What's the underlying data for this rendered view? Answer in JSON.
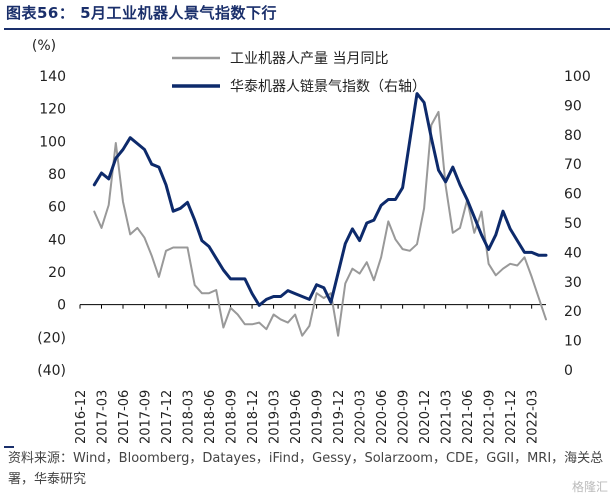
{
  "figure_title": "图表56： 5月工业机器人景气指数下行",
  "source_note": "资料来源：Wind，Bloomberg，Datayes，iFind，Gessy，Solarzoom，CDE，GGII，MRI，海关总署，华泰研究",
  "watermark": "格隆汇",
  "chart_data": {
    "type": "line",
    "left_unit": "(%)",
    "left_ylim": [
      -40,
      140
    ],
    "left_ticks": [
      "(40)",
      "(20)",
      "0",
      "20",
      "40",
      "60",
      "80",
      "100",
      "120",
      "140"
    ],
    "left_tick_values": [
      -40,
      -20,
      0,
      20,
      40,
      60,
      80,
      100,
      120,
      140
    ],
    "right_ylim": [
      0,
      100
    ],
    "right_ticks": [
      "0",
      "10",
      "20",
      "30",
      "40",
      "50",
      "60",
      "70",
      "80",
      "90",
      "100"
    ],
    "right_tick_values": [
      0,
      10,
      20,
      30,
      40,
      50,
      60,
      70,
      80,
      90,
      100
    ],
    "x_start": "2016-12",
    "x_count": 66,
    "x_tick_labels": [
      "2016-12",
      "2017-03",
      "2017-06",
      "2017-09",
      "2017-12",
      "2018-03",
      "2018-06",
      "2018-09",
      "2018-12",
      "2019-03",
      "2019-06",
      "2019-09",
      "2019-12",
      "2020-03",
      "2020-06",
      "2020-09",
      "2020-12",
      "2021-03",
      "2021-06",
      "2021-09",
      "2021-12",
      "2022-03"
    ],
    "legend_position": "top-center",
    "series": [
      {
        "name": "工业机器人产量 当月同比",
        "axis": "left",
        "color": "#999999",
        "values": [
          null,
          null,
          57,
          47,
          61,
          99,
          63,
          43,
          47,
          41,
          30,
          17,
          33,
          35,
          35,
          35,
          12,
          7,
          7,
          9,
          -14,
          -2,
          -6,
          -12,
          -12,
          -11,
          -15,
          -6,
          -9,
          -11,
          -6,
          -19,
          -13,
          7,
          4,
          7,
          -19,
          13,
          22,
          19,
          26,
          15,
          29,
          51,
          40,
          34,
          33,
          37,
          59,
          110,
          118,
          73,
          44,
          47,
          64,
          44,
          57,
          25,
          18,
          22,
          25,
          24,
          29,
          17,
          4,
          -9
        ]
      },
      {
        "name": "华泰机器人链景气指数（右轴）",
        "axis": "right",
        "color": "#0d2a6b",
        "values": [
          null,
          null,
          63,
          67,
          65,
          72,
          75,
          79,
          77,
          75,
          70,
          69,
          63,
          54,
          55,
          57,
          51,
          44,
          42,
          38,
          34,
          31,
          31,
          31,
          26,
          22,
          24,
          25,
          25,
          27,
          26,
          25,
          24,
          29,
          28,
          23,
          33,
          43,
          48,
          44,
          50,
          51,
          56,
          58,
          58,
          62,
          78,
          94,
          91,
          79,
          68,
          64,
          69,
          63,
          58,
          52,
          46,
          41,
          46,
          54,
          48,
          44,
          40,
          40,
          39,
          39
        ]
      }
    ]
  }
}
